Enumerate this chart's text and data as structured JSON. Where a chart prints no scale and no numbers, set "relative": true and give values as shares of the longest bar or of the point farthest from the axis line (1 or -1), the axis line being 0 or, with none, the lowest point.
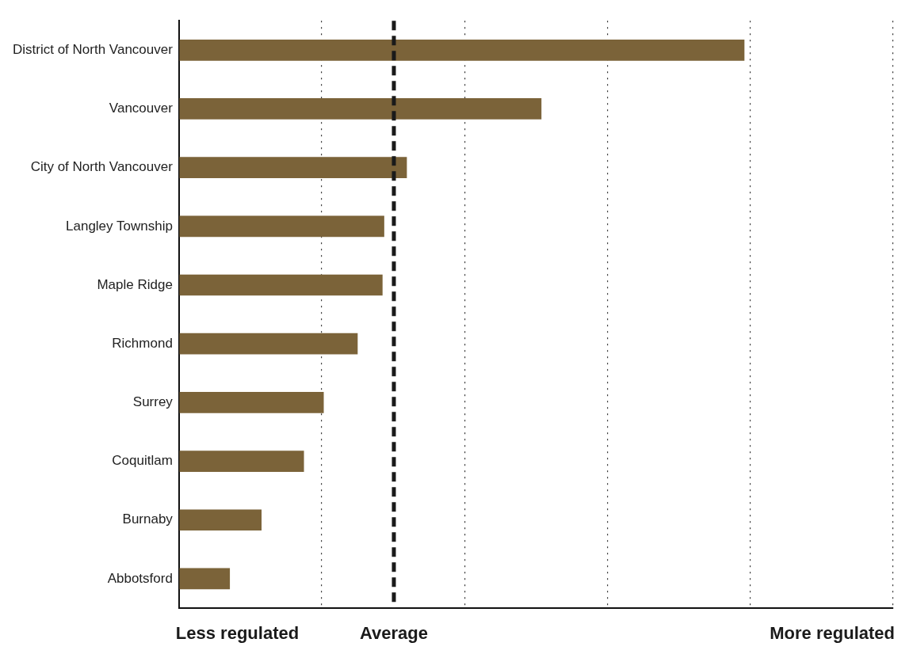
{
  "chart_data": {
    "type": "bar",
    "orientation": "horizontal",
    "relative": true,
    "categories": [
      "District of North Vancouver",
      "Vancouver",
      "City of North Vancouver",
      "Langley Township",
      "Maple Ridge",
      "Richmond",
      "Surrey",
      "Coquitlam",
      "Burnaby",
      "Abbotsford"
    ],
    "values": [
      1,
      0.641,
      0.403,
      0.363,
      0.36,
      0.316,
      0.256,
      0.221,
      0.146,
      0.09
    ],
    "color": "#7b6339",
    "grid": "x",
    "ref_lines": [
      {
        "axis": "x",
        "value": 0.38,
        "label": "Average",
        "color": "#1a1a1a",
        "line_style": "dashed"
      }
    ],
    "annotations": [
      "Less regulated",
      "More regulated"
    ]
  }
}
